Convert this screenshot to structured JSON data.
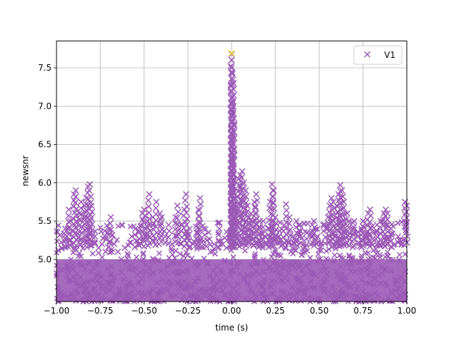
{
  "chart_data": {
    "type": "scatter",
    "xlabel": "time (s)",
    "ylabel": "newsnr",
    "xlim": [
      -1.0,
      1.0
    ],
    "ylim": [
      4.45,
      7.85
    ],
    "xticks": [
      -1.0,
      -0.75,
      -0.5,
      -0.25,
      0.0,
      0.25,
      0.5,
      0.75,
      1.0
    ],
    "xtick_labels": [
      "−1.00",
      "−0.75",
      "−0.50",
      "−0.25",
      "0.00",
      "0.25",
      "0.50",
      "0.75",
      "1.00"
    ],
    "yticks": [
      5.0,
      5.5,
      6.0,
      6.5,
      7.0,
      7.5
    ],
    "ytick_labels": [
      "5.0",
      "5.5",
      "6.0",
      "6.5",
      "7.0",
      "7.5"
    ],
    "grid": true,
    "legend_position": "top-right",
    "marker": "x",
    "series": [
      {
        "name": "V1",
        "color": "#9b59b6",
        "points": [
          [
            -0.99,
            5.12
          ],
          [
            -0.97,
            5.15
          ],
          [
            -0.95,
            5.4
          ],
          [
            -0.93,
            5.65
          ],
          [
            -0.92,
            5.5
          ],
          [
            -0.9,
            5.85
          ],
          [
            -0.89,
            5.9
          ],
          [
            -0.87,
            5.6
          ],
          [
            -0.86,
            5.75
          ],
          [
            -0.84,
            5.7
          ],
          [
            -0.83,
            5.8
          ],
          [
            -0.82,
            5.95
          ],
          [
            -0.81,
            5.98
          ],
          [
            -0.8,
            5.7
          ],
          [
            -0.78,
            5.3
          ],
          [
            -0.76,
            5.15
          ],
          [
            -0.74,
            5.2
          ],
          [
            -0.72,
            5.1
          ],
          [
            -0.7,
            5.4
          ],
          [
            -0.69,
            5.55
          ],
          [
            -0.67,
            5.2
          ],
          [
            -0.65,
            5.1
          ],
          [
            -0.63,
            5.0
          ],
          [
            -0.61,
            5.15
          ],
          [
            -0.59,
            5.05
          ],
          [
            -0.57,
            5.3
          ],
          [
            -0.55,
            5.4
          ],
          [
            -0.53,
            5.35
          ],
          [
            -0.51,
            5.6
          ],
          [
            -0.5,
            5.65
          ],
          [
            -0.48,
            5.5
          ],
          [
            -0.47,
            5.85
          ],
          [
            -0.45,
            5.55
          ],
          [
            -0.43,
            5.75
          ],
          [
            -0.41,
            5.6
          ],
          [
            -0.4,
            5.55
          ],
          [
            -0.38,
            5.3
          ],
          [
            -0.36,
            5.45
          ],
          [
            -0.34,
            5.2
          ],
          [
            -0.32,
            5.55
          ],
          [
            -0.31,
            5.7
          ],
          [
            -0.29,
            5.45
          ],
          [
            -0.27,
            5.65
          ],
          [
            -0.26,
            5.85
          ],
          [
            -0.24,
            5.4
          ],
          [
            -0.22,
            5.2
          ],
          [
            -0.2,
            5.35
          ],
          [
            -0.19,
            5.65
          ],
          [
            -0.18,
            5.8
          ],
          [
            -0.16,
            5.4
          ],
          [
            -0.14,
            5.25
          ],
          [
            -0.12,
            5.1
          ],
          [
            -0.1,
            5.2
          ],
          [
            -0.08,
            5.15
          ],
          [
            -0.07,
            5.48
          ],
          [
            -0.05,
            5.2
          ],
          [
            -0.03,
            5.15
          ],
          [
            -0.01,
            5.35
          ],
          [
            0.0,
            7.68
          ],
          [
            0.0,
            7.6
          ],
          [
            0.0,
            7.5
          ],
          [
            0.01,
            7.3
          ],
          [
            0.0,
            7.2
          ],
          [
            0.01,
            7.0
          ],
          [
            0.0,
            6.8
          ],
          [
            0.01,
            6.6
          ],
          [
            0.0,
            6.3
          ],
          [
            0.01,
            6.1
          ],
          [
            0.0,
            5.9
          ],
          [
            0.02,
            5.8
          ],
          [
            0.03,
            5.7
          ],
          [
            0.04,
            6.05
          ],
          [
            0.05,
            6.1
          ],
          [
            0.06,
            6.15
          ],
          [
            0.07,
            6.0
          ],
          [
            0.08,
            5.9
          ],
          [
            0.09,
            5.7
          ],
          [
            0.1,
            5.55
          ],
          [
            0.11,
            5.6
          ],
          [
            0.12,
            5.5
          ],
          [
            0.13,
            5.75
          ],
          [
            0.14,
            5.85
          ],
          [
            0.15,
            5.4
          ],
          [
            0.16,
            5.5
          ],
          [
            0.17,
            5.35
          ],
          [
            0.18,
            5.5
          ],
          [
            0.19,
            5.3
          ],
          [
            0.2,
            5.2
          ],
          [
            0.21,
            5.4
          ],
          [
            0.22,
            5.75
          ],
          [
            0.23,
            5.98
          ],
          [
            0.24,
            5.9
          ],
          [
            0.25,
            5.55
          ],
          [
            0.27,
            5.3
          ],
          [
            0.29,
            5.2
          ],
          [
            0.3,
            5.45
          ],
          [
            0.31,
            5.72
          ],
          [
            0.33,
            5.55
          ],
          [
            0.35,
            5.3
          ],
          [
            0.37,
            5.5
          ],
          [
            0.39,
            5.45
          ],
          [
            0.41,
            5.2
          ],
          [
            0.43,
            5.35
          ],
          [
            0.45,
            5.2
          ],
          [
            0.46,
            5.45
          ],
          [
            0.47,
            5.5
          ],
          [
            0.49,
            5.3
          ],
          [
            0.51,
            5.2
          ],
          [
            0.53,
            5.45
          ],
          [
            0.55,
            5.55
          ],
          [
            0.56,
            5.7
          ],
          [
            0.57,
            5.8
          ],
          [
            0.58,
            5.75
          ],
          [
            0.6,
            5.7
          ],
          [
            0.61,
            5.85
          ],
          [
            0.62,
            5.97
          ],
          [
            0.63,
            5.9
          ],
          [
            0.64,
            5.75
          ],
          [
            0.66,
            5.6
          ],
          [
            0.67,
            5.5
          ],
          [
            0.69,
            5.4
          ],
          [
            0.7,
            5.5
          ],
          [
            0.72,
            5.3
          ],
          [
            0.74,
            5.4
          ],
          [
            0.75,
            5.5
          ],
          [
            0.77,
            5.45
          ],
          [
            0.78,
            5.6
          ],
          [
            0.79,
            5.65
          ],
          [
            0.81,
            5.35
          ],
          [
            0.83,
            5.45
          ],
          [
            0.85,
            5.5
          ],
          [
            0.87,
            5.6
          ],
          [
            0.88,
            5.65
          ],
          [
            0.89,
            5.6
          ],
          [
            0.91,
            5.4
          ],
          [
            0.93,
            5.2
          ],
          [
            0.95,
            5.3
          ],
          [
            0.97,
            5.2
          ],
          [
            0.99,
            5.75
          ],
          [
            1.0,
            5.7
          ]
        ]
      },
      {
        "name": "",
        "color": "#f4e51a",
        "points": [
          [
            0.0,
            7.69
          ]
        ]
      }
    ],
    "noise_band": {
      "ymin": 4.45,
      "ymax": 5.15,
      "color": "#9b59b6"
    }
  }
}
